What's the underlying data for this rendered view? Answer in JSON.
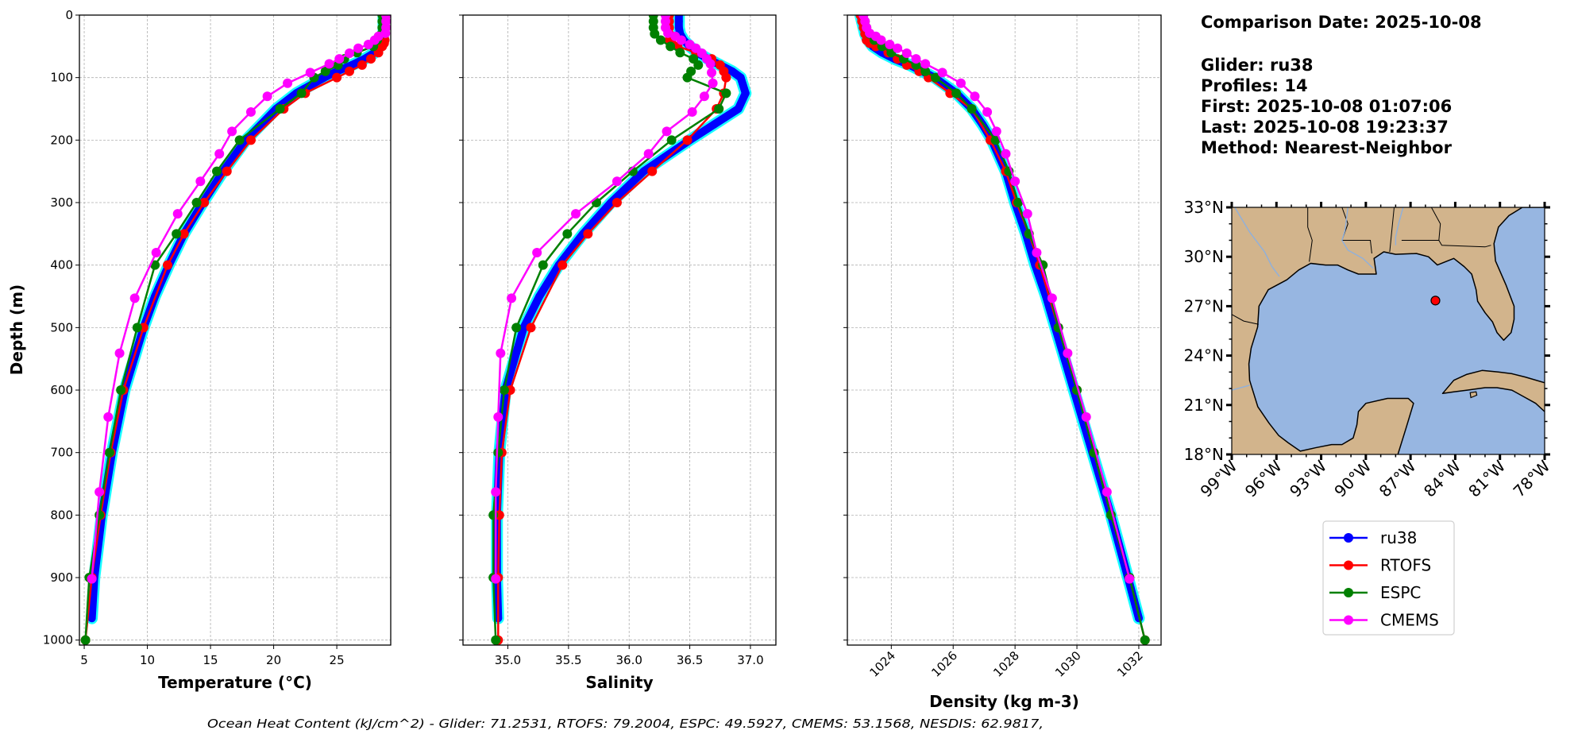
{
  "info": {
    "comparison_date": "Comparison Date: 2025-10-08",
    "glider": "Glider: ru38",
    "profiles": "Profiles: 14",
    "first": "First: 2025-10-08 01:07:06",
    "last": "Last: 2025-10-08 19:23:37",
    "method": "Method: Nearest-Neighbor"
  },
  "caption": "Ocean Heat Content (kJ/cm^2) - Glider: 71.2531,  RTOFS: 79.2004,  ESPC: 49.5927,  CMEMS: 53.1568,  NESDIS: 62.9817,",
  "legend": {
    "placement": "below-map",
    "items": [
      {
        "label": "ru38",
        "color": "#0000FF"
      },
      {
        "label": "RTOFS",
        "color": "#FF0000"
      },
      {
        "label": "ESPC",
        "color": "#008000"
      },
      {
        "label": "CMEMS",
        "color": "#FF00FF"
      }
    ]
  },
  "map": {
    "lon_range": [
      -99,
      -78
    ],
    "lat_range": [
      18,
      33
    ],
    "lat_labels": [
      "18°N",
      "21°N",
      "24°N",
      "27°N",
      "30°N",
      "33°N"
    ],
    "lon_labels": [
      "99°W",
      "96°W",
      "93°W",
      "90°W",
      "87°W",
      "84°W",
      "81°W",
      "78°W"
    ],
    "glider_position": {
      "lon": -85.33,
      "lat": 27.34,
      "color": "#FF0000"
    },
    "land_color": "#D2B48C",
    "ocean_color": "#97B6E1"
  },
  "chart_data": [
    {
      "type": "line",
      "xlabel": "Temperature (°C)",
      "ylabel": "Depth (m)",
      "xlim": [
        4.62,
        29.27
      ],
      "ylim": [
        1008,
        0
      ],
      "xticks": [
        5,
        10,
        15,
        20,
        25
      ],
      "xticklabels": [
        "5",
        "10",
        "15",
        "20",
        "25"
      ],
      "yticks": [
        0,
        100,
        200,
        300,
        400,
        500,
        600,
        700,
        800,
        900,
        1000
      ],
      "yticklabels": [
        "0",
        "100",
        "200",
        "300",
        "400",
        "500",
        "600",
        "700",
        "800",
        "900",
        "1000"
      ],
      "grid": true,
      "series": [
        {
          "name": "ru38",
          "color": "#0000FF",
          "depth": [
            0,
            10,
            20,
            30,
            40,
            50,
            60,
            70,
            80,
            90,
            100,
            125,
            150,
            175,
            200,
            250,
            300,
            350,
            400,
            450,
            500,
            600,
            700,
            800,
            900,
            965
          ],
          "values": [
            28.7,
            28.7,
            28.7,
            28.7,
            28.6,
            28.4,
            28.0,
            27.2,
            26.2,
            25.0,
            24.0,
            21.8,
            20.2,
            19.0,
            17.8,
            16.0,
            14.4,
            12.9,
            11.7,
            10.6,
            9.7,
            8.2,
            7.2,
            6.4,
            5.8,
            5.6
          ]
        },
        {
          "name": "RTOFS",
          "color": "#FF0000",
          "depth": [
            0,
            10,
            20,
            30,
            40,
            45,
            50,
            60,
            70,
            80,
            90,
            100,
            125,
            150,
            200,
            250,
            300,
            350,
            400,
            500,
            600,
            700,
            800,
            900,
            1000
          ],
          "values": [
            28.8,
            28.8,
            28.8,
            28.8,
            28.8,
            28.75,
            28.6,
            28.3,
            27.7,
            27.0,
            26.0,
            25.0,
            22.5,
            20.8,
            18.2,
            16.3,
            14.5,
            12.9,
            11.6,
            9.7,
            8.1,
            7.1,
            6.3,
            5.6,
            5.1
          ]
        },
        {
          "name": "ESPC",
          "color": "#008000",
          "depth": [
            0,
            10,
            20,
            30,
            40,
            50,
            60,
            70,
            80,
            90,
            100,
            125,
            150,
            200,
            250,
            300,
            350,
            400,
            500,
            600,
            700,
            800,
            900,
            1000
          ],
          "values": [
            28.6,
            28.6,
            28.6,
            28.55,
            28.2,
            27.9,
            26.6,
            25.6,
            25.1,
            24.1,
            23.2,
            22.2,
            20.5,
            17.3,
            15.5,
            13.9,
            12.3,
            10.6,
            9.2,
            7.9,
            7.0,
            6.2,
            5.4,
            5.1
          ]
        },
        {
          "name": "CMEMS",
          "color": "#FF00FF",
          "depth": [
            0.5,
            10,
            20,
            29,
            34,
            40,
            47,
            53,
            61,
            70,
            78,
            92,
            109,
            130,
            155,
            186,
            222,
            266,
            318,
            380,
            453,
            541,
            643,
            763,
            902
          ],
          "values": [
            28.9,
            28.9,
            28.9,
            28.85,
            28.3,
            28.0,
            27.5,
            26.7,
            26.0,
            25.2,
            24.4,
            22.9,
            21.1,
            19.5,
            18.2,
            16.7,
            15.7,
            14.2,
            12.4,
            10.7,
            9.0,
            7.8,
            6.9,
            6.2,
            5.6
          ]
        }
      ]
    },
    {
      "type": "line",
      "xlabel": "Salinity",
      "xlim": [
        34.63,
        37.21
      ],
      "ylim": [
        1008,
        0
      ],
      "xticks": [
        35.0,
        35.5,
        36.0,
        36.5,
        37.0
      ],
      "xticklabels": [
        "35.0",
        "35.5",
        "36.0",
        "36.5",
        "37.0"
      ],
      "yticks": [
        0,
        100,
        200,
        300,
        400,
        500,
        600,
        700,
        800,
        900,
        1000
      ],
      "grid": true,
      "series": [
        {
          "name": "ru38",
          "color": "#0000FF",
          "depth": [
            0,
            10,
            20,
            30,
            40,
            50,
            60,
            70,
            80,
            90,
            100,
            125,
            150,
            175,
            200,
            250,
            300,
            350,
            400,
            450,
            500,
            600,
            700,
            800,
            900,
            965
          ],
          "values": [
            36.41,
            36.41,
            36.41,
            36.42,
            36.45,
            36.5,
            36.56,
            36.65,
            36.75,
            36.85,
            36.92,
            36.96,
            36.9,
            36.7,
            36.5,
            36.12,
            35.85,
            35.62,
            35.42,
            35.26,
            35.13,
            34.98,
            34.93,
            34.91,
            34.91,
            34.92
          ]
        },
        {
          "name": "RTOFS",
          "color": "#FF0000",
          "depth": [
            0,
            10,
            20,
            30,
            40,
            45,
            50,
            60,
            70,
            80,
            90,
            100,
            125,
            150,
            200,
            250,
            300,
            350,
            400,
            500,
            600,
            700,
            800,
            900,
            1000
          ],
          "values": [
            36.33,
            36.33,
            36.33,
            36.33,
            36.33,
            36.35,
            36.4,
            36.55,
            36.68,
            36.75,
            36.78,
            36.8,
            36.78,
            36.72,
            36.48,
            36.19,
            35.9,
            35.66,
            35.45,
            35.19,
            35.02,
            34.95,
            34.93,
            34.92,
            34.92
          ]
        },
        {
          "name": "ESPC",
          "color": "#008000",
          "depth": [
            0,
            10,
            20,
            30,
            40,
            50,
            60,
            70,
            80,
            90,
            100,
            125,
            150,
            200,
            250,
            300,
            350,
            400,
            500,
            600,
            700,
            800,
            900,
            1000
          ],
          "values": [
            36.2,
            36.2,
            36.2,
            36.21,
            36.26,
            36.34,
            36.42,
            36.53,
            36.57,
            36.51,
            36.48,
            36.8,
            36.74,
            36.35,
            36.03,
            35.73,
            35.49,
            35.29,
            35.07,
            34.97,
            34.92,
            34.88,
            34.88,
            34.9
          ]
        },
        {
          "name": "CMEMS",
          "color": "#FF00FF",
          "depth": [
            0.5,
            10,
            20,
            29,
            34,
            40,
            47,
            53,
            61,
            70,
            78,
            92,
            109,
            130,
            155,
            186,
            222,
            266,
            318,
            380,
            453,
            541,
            643,
            763,
            902
          ],
          "values": [
            36.3,
            36.3,
            36.3,
            36.32,
            36.38,
            36.43,
            36.5,
            36.55,
            36.6,
            36.64,
            36.67,
            36.68,
            36.69,
            36.62,
            36.52,
            36.31,
            36.16,
            35.9,
            35.56,
            35.24,
            35.03,
            34.94,
            34.92,
            34.9,
            34.9
          ]
        }
      ]
    },
    {
      "type": "line",
      "xlabel": "Density (kg m-3)",
      "xlim": [
        1022.58,
        1032.72
      ],
      "ylim": [
        1008,
        0
      ],
      "xticks": [
        1024,
        1026,
        1028,
        1030,
        1032
      ],
      "xticklabels": [
        "1024",
        "1026",
        "1028",
        "1030",
        "1032"
      ],
      "yticks": [
        0,
        100,
        200,
        300,
        400,
        500,
        600,
        700,
        800,
        900,
        1000
      ],
      "grid": true,
      "series": [
        {
          "name": "ru38",
          "color": "#0000FF",
          "depth": [
            0,
            10,
            20,
            30,
            40,
            50,
            60,
            70,
            80,
            90,
            100,
            125,
            150,
            175,
            200,
            250,
            300,
            350,
            400,
            450,
            500,
            600,
            700,
            800,
            900,
            965
          ],
          "values": [
            1023.0,
            1023.05,
            1023.1,
            1023.15,
            1023.25,
            1023.4,
            1023.7,
            1024.1,
            1024.6,
            1025.0,
            1025.4,
            1026.1,
            1026.6,
            1026.95,
            1027.25,
            1027.7,
            1028.0,
            1028.35,
            1028.65,
            1029.0,
            1029.3,
            1029.9,
            1030.5,
            1031.1,
            1031.65,
            1032.0
          ]
        },
        {
          "name": "RTOFS",
          "color": "#FF0000",
          "depth": [
            0,
            10,
            20,
            30,
            40,
            45,
            50,
            60,
            70,
            80,
            90,
            100,
            125,
            150,
            200,
            250,
            300,
            350,
            400,
            500,
            600,
            700,
            800,
            900,
            1000
          ],
          "values": [
            1023.0,
            1023.05,
            1023.1,
            1023.15,
            1023.2,
            1023.3,
            1023.5,
            1023.9,
            1024.2,
            1024.5,
            1024.9,
            1025.2,
            1025.9,
            1026.6,
            1027.2,
            1027.7,
            1028.05,
            1028.45,
            1028.8,
            1029.4,
            1030.0,
            1030.55,
            1031.1,
            1031.7,
            1032.2
          ]
        },
        {
          "name": "ESPC",
          "color": "#008000",
          "depth": [
            0,
            10,
            20,
            30,
            40,
            50,
            60,
            70,
            80,
            90,
            100,
            125,
            150,
            200,
            250,
            300,
            350,
            400,
            500,
            600,
            700,
            800,
            900,
            1000
          ],
          "values": [
            1023.1,
            1023.15,
            1023.2,
            1023.3,
            1023.45,
            1023.7,
            1024.0,
            1024.4,
            1024.8,
            1025.1,
            1025.43,
            1026.1,
            1026.6,
            1027.37,
            1027.8,
            1028.1,
            1028.45,
            1028.9,
            1029.4,
            1030.0,
            1030.55,
            1031.1,
            1031.7,
            1032.2
          ]
        },
        {
          "name": "CMEMS",
          "color": "#FF00FF",
          "depth": [
            0.5,
            10,
            20,
            29,
            34,
            40,
            47,
            53,
            61,
            70,
            78,
            92,
            109,
            130,
            155,
            186,
            222,
            266,
            318,
            380,
            453,
            541,
            643,
            763,
            902
          ],
          "values": [
            1023.1,
            1023.15,
            1023.2,
            1023.3,
            1023.5,
            1023.67,
            1023.95,
            1024.2,
            1024.5,
            1024.8,
            1025.1,
            1025.65,
            1026.25,
            1026.7,
            1027.1,
            1027.4,
            1027.7,
            1028.0,
            1028.4,
            1028.7,
            1029.2,
            1029.7,
            1030.3,
            1030.97,
            1031.7
          ]
        }
      ]
    }
  ]
}
